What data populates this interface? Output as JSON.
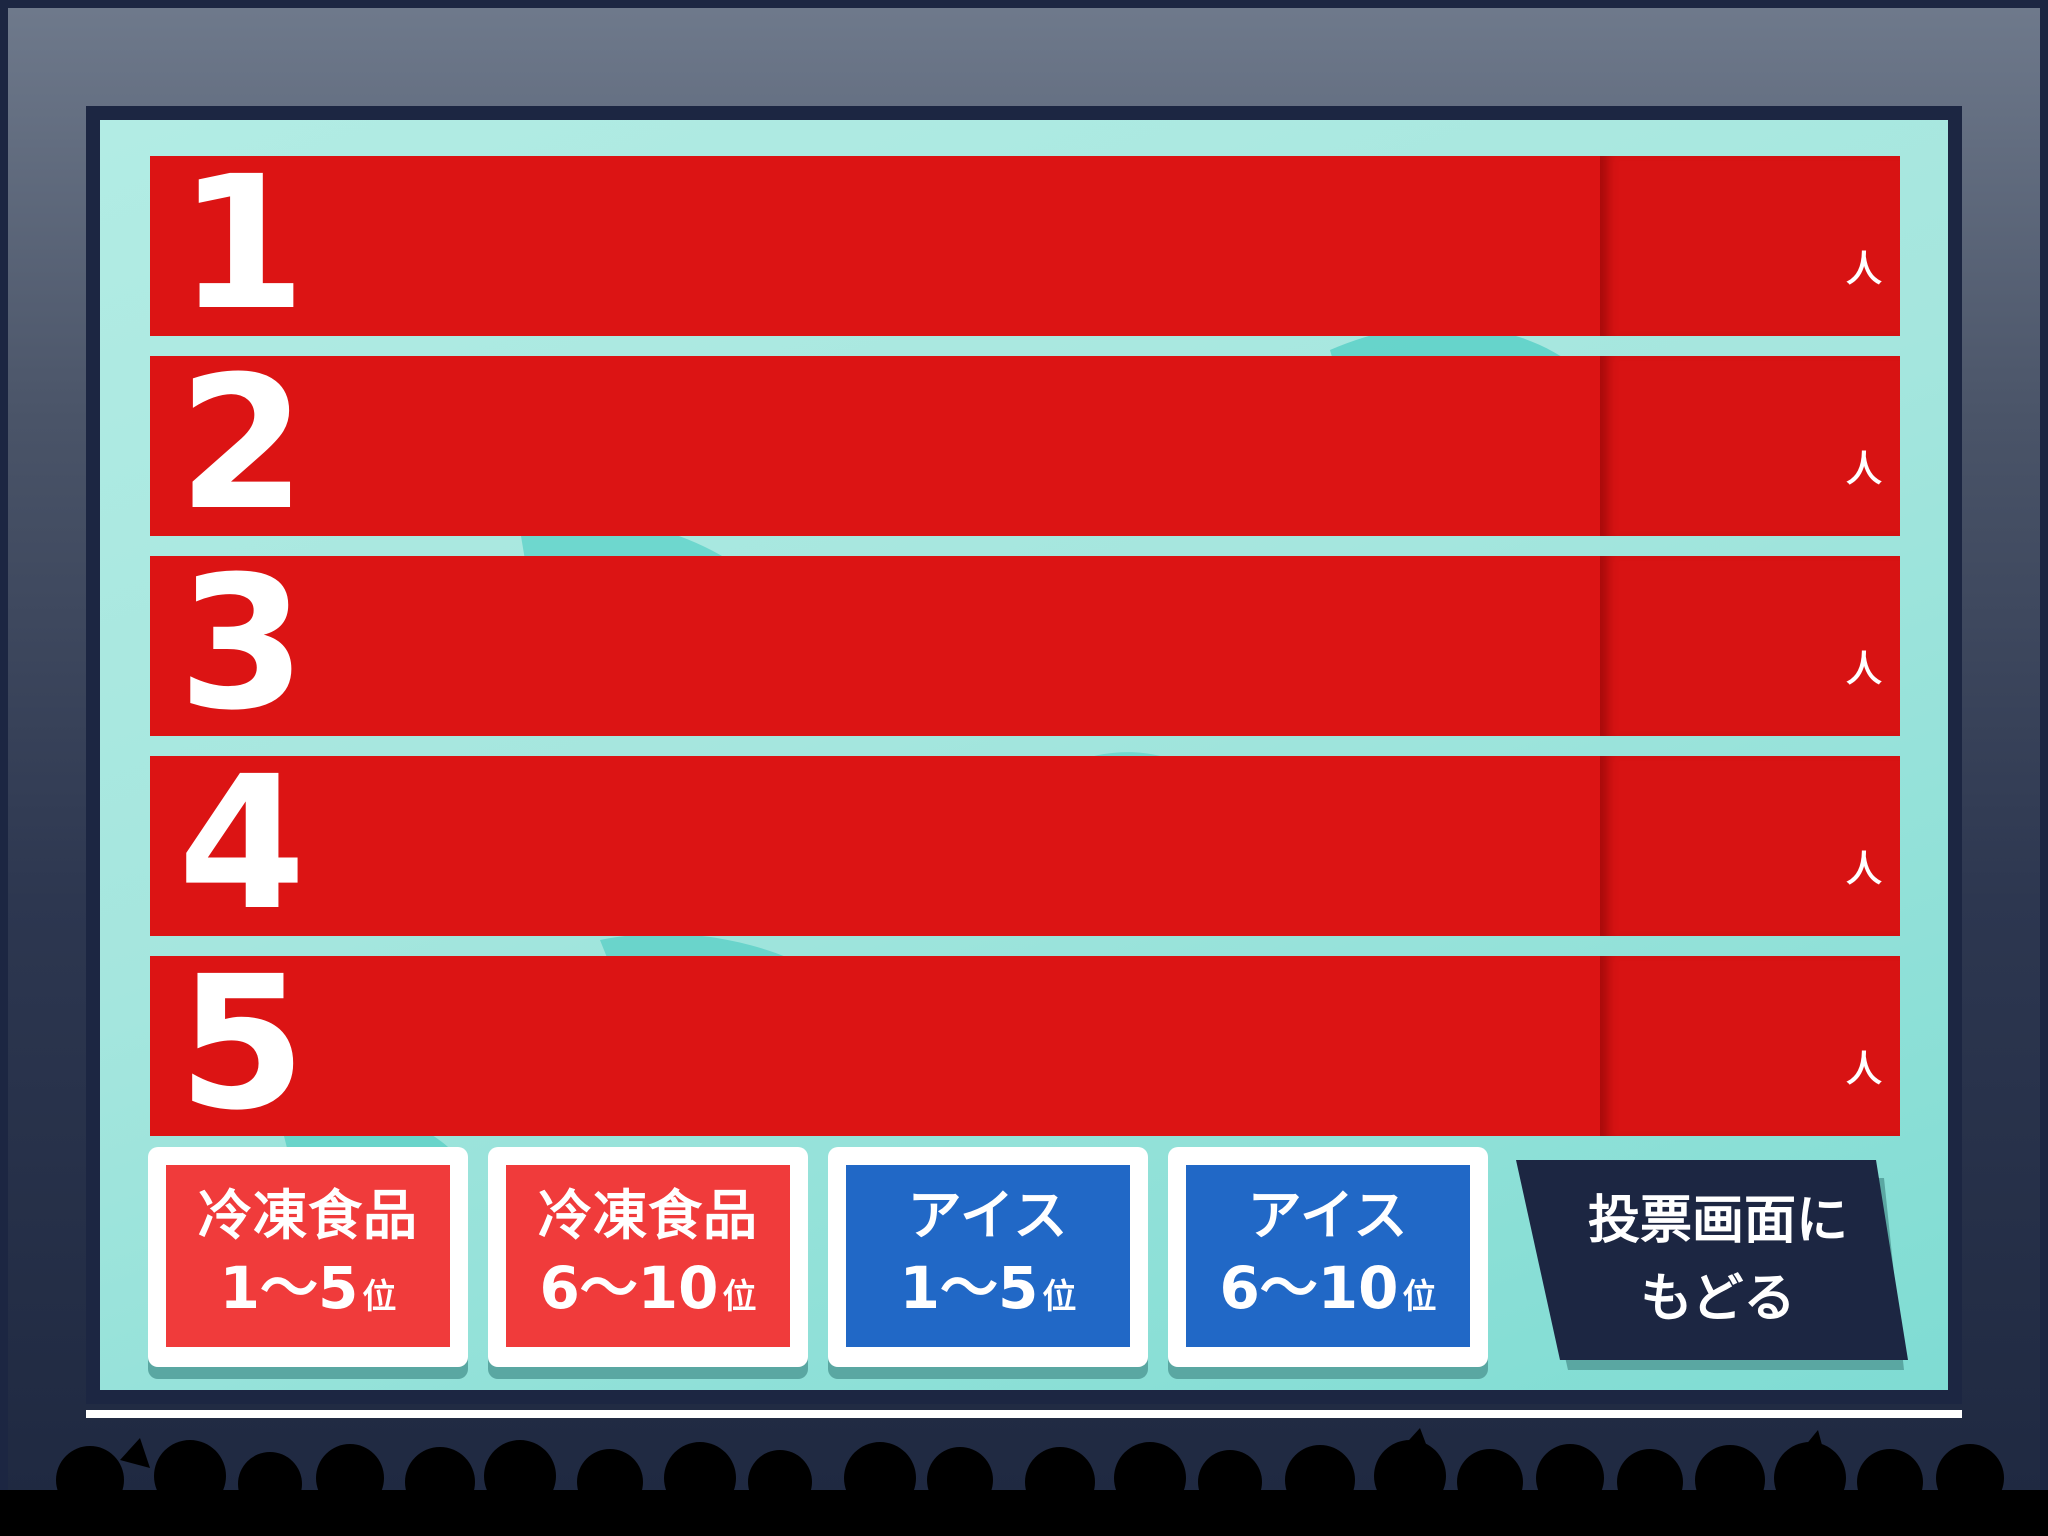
{
  "ranking": {
    "rows": [
      {
        "rank": "1",
        "unit": "人"
      },
      {
        "rank": "2",
        "unit": "人"
      },
      {
        "rank": "3",
        "unit": "人"
      },
      {
        "rank": "4",
        "unit": "人"
      },
      {
        "rank": "5",
        "unit": "人"
      }
    ]
  },
  "nav": {
    "frozen_1_5": {
      "line1": "冷凍食品",
      "line2": "1〜5",
      "suffix": "位"
    },
    "frozen_6_10": {
      "line1": "冷凍食品",
      "line2": "6〜10",
      "suffix": "位"
    },
    "ice_1_5": {
      "line1": "アイス",
      "line2": "1〜5",
      "suffix": "位"
    },
    "ice_6_10": {
      "line1": "アイス",
      "line2": "6〜10",
      "suffix": "位"
    },
    "back": {
      "line1": "投票画面に",
      "line2": "もどる"
    }
  },
  "colors": {
    "row_red": "#dc1414",
    "button_red": "#f03b3b",
    "button_blue": "#2168c6",
    "back_navy": "#1c2642",
    "screen_teal": "#a5e6de"
  }
}
